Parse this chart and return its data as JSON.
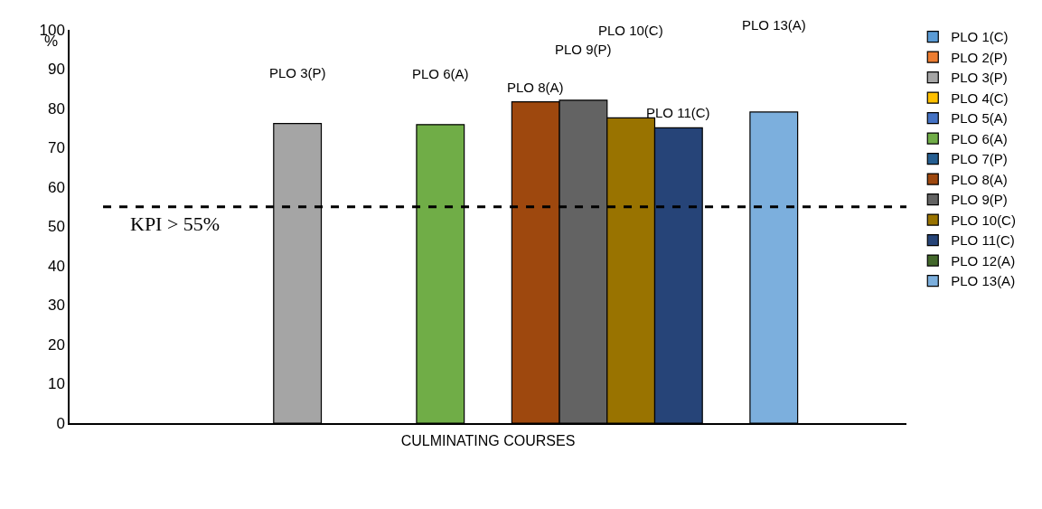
{
  "chart_data": {
    "type": "bar",
    "categories": [
      null
    ],
    "xlabel": "CULMINATING COURSES",
    "ylabel": "%",
    "ylim": [
      0,
      100
    ],
    "yticks": [
      0,
      10,
      20,
      30,
      40,
      50,
      60,
      70,
      80,
      90,
      100
    ],
    "grid": false,
    "legend": "right",
    "series": [
      {
        "name": "PLO 1(C)",
        "color": "#5b9bd5",
        "values": [
          null
        ]
      },
      {
        "name": "PLO 2(P)",
        "color": "#ed7d31",
        "values": [
          null
        ]
      },
      {
        "name": "PLO 3(P)",
        "color": "#a5a5a5",
        "values": [
          76.2
        ]
      },
      {
        "name": "PLO 4(C)",
        "color": "#ffc000",
        "values": [
          null
        ]
      },
      {
        "name": "PLO 5(A)",
        "color": "#4472c4",
        "values": [
          null
        ]
      },
      {
        "name": "PLO 6(A)",
        "color": "#70ad47",
        "values": [
          75.9
        ]
      },
      {
        "name": "PLO 7(P)",
        "color": "#255e91",
        "values": [
          null
        ]
      },
      {
        "name": "PLO 8(A)",
        "color": "#9e480e",
        "values": [
          81.7
        ]
      },
      {
        "name": "PLO 9(P)",
        "color": "#636363",
        "values": [
          82.1
        ]
      },
      {
        "name": "PLO 10(C)",
        "color": "#997300",
        "values": [
          77.6
        ]
      },
      {
        "name": "PLO 11(C)",
        "color": "#264478",
        "values": [
          75.1
        ]
      },
      {
        "name": "PLO 12(A)",
        "color": "#43682b",
        "values": [
          null
        ]
      },
      {
        "name": "PLO 13(A)",
        "color": "#7cafdd",
        "values": [
          79.1
        ]
      }
    ],
    "ref_lines": [
      {
        "axis": "y",
        "value": 55,
        "label": "KPI > 55%",
        "color": "#000000",
        "line_style": "dashed"
      }
    ]
  }
}
